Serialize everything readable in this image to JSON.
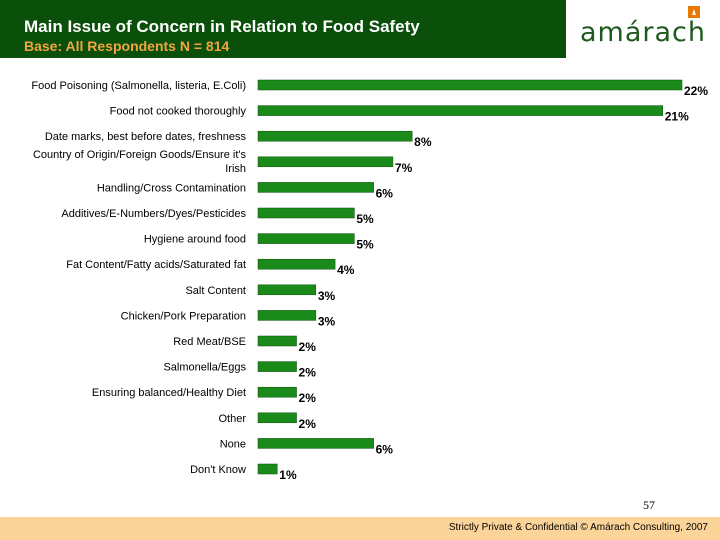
{
  "header": {
    "title": "Main Issue of Concern in Relation to Food Safety",
    "subtitle": "Base: All Respondents N = 814",
    "logo_text": "amárach"
  },
  "colors": {
    "header_bg": "#0a4f0a",
    "subtitle": "#f2a540",
    "bar": "#1a8a1a",
    "footer_bg": "#fbd49a",
    "logo_mark": "#e87800"
  },
  "chart_data": {
    "type": "bar",
    "orientation": "horizontal",
    "title": "Main Issue of Concern in Relation to Food Safety",
    "xlabel": "",
    "ylabel": "",
    "xlim": [
      0,
      22
    ],
    "categories": [
      [
        "Food Poisoning (Salmonella, listeria, E.Coli)"
      ],
      [
        "Food not cooked thoroughly"
      ],
      [
        "Date marks, best before dates, freshness"
      ],
      [
        "Country of Origin/Foreign Goods/Ensure it's",
        "Irish"
      ],
      [
        "Handling/Cross Contamination"
      ],
      [
        "Additives/E-Numbers/Dyes/Pesticides"
      ],
      [
        "Hygiene around food"
      ],
      [
        "Fat Content/Fatty acids/Saturated fat"
      ],
      [
        "Salt Content"
      ],
      [
        "Chicken/Pork Preparation"
      ],
      [
        "Red Meat/BSE"
      ],
      [
        "Salmonella/Eggs"
      ],
      [
        "Ensuring balanced/Healthy Diet"
      ],
      [
        "Other"
      ],
      [
        "None"
      ],
      [
        "Don't Know"
      ]
    ],
    "values": [
      22,
      21,
      8,
      7,
      6,
      5,
      5,
      4,
      3,
      3,
      2,
      2,
      2,
      2,
      6,
      1
    ],
    "value_labels": [
      "22%",
      "21%",
      "8%",
      "7%",
      "6%",
      "5%",
      "5%",
      "4%",
      "3%",
      "3%",
      "2%",
      "2%",
      "2%",
      "2%",
      "6%",
      "1%"
    ]
  },
  "footer": {
    "page_number": "57",
    "text": "Strictly Private & Confidential © Amárach Consulting, 2007"
  }
}
